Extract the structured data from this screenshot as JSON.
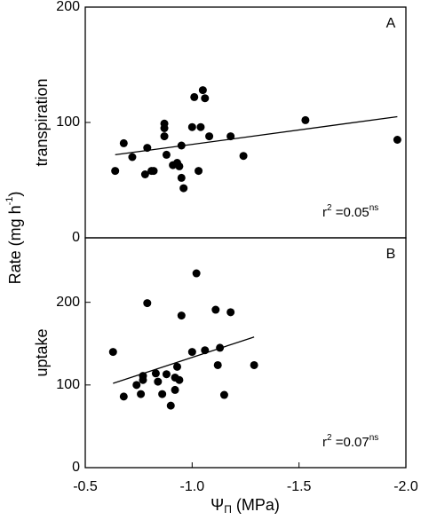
{
  "ylabel": {
    "text": "Rate (mg h",
    "sup": "-1",
    "end": ")"
  },
  "chart_data": [
    {
      "type": "scatter",
      "panel": "A",
      "ylabel": "transpiration",
      "annotation": {
        "r": "r",
        "sup": "2",
        "text": " =0.05",
        "ns": "ns"
      },
      "xlim": [
        -0.5,
        -2.0
      ],
      "ylim": [
        0,
        200
      ],
      "yticks": [
        0,
        100,
        200
      ],
      "color": "#000000",
      "x": [
        -0.64,
        -0.68,
        -0.72,
        -0.78,
        -0.79,
        -0.81,
        -0.82,
        -0.87,
        -0.87,
        -0.87,
        -0.88,
        -0.91,
        -0.93,
        -0.94,
        -0.95,
        -0.96,
        -0.95,
        -1.0,
        -1.01,
        -1.03,
        -1.04,
        -1.05,
        -1.06,
        -1.08,
        -1.18,
        -1.24,
        -1.53,
        -1.96
      ],
      "values": [
        58,
        82,
        70,
        55,
        78,
        58,
        58,
        99,
        95,
        88,
        72,
        63,
        65,
        62,
        52,
        43,
        80,
        96,
        122,
        58,
        96,
        128,
        121,
        88,
        88,
        71,
        102,
        85
      ],
      "fit": {
        "x": [
          -0.64,
          -1.96
        ],
        "y": [
          72,
          105
        ]
      }
    },
    {
      "type": "scatter",
      "panel": "B",
      "ylabel": "uptake",
      "annotation": {
        "r": "r",
        "sup": "2",
        "text": " =0.07",
        "ns": "ns"
      },
      "xlabel": {
        "psi": "Ψ",
        "sub": "Π",
        "text": " (MPa)"
      },
      "xlim": [
        -0.5,
        -2.0
      ],
      "xticks": [
        -0.5,
        {
          "value": -1,
          "label": "-1.0"
        },
        -1.5,
        {
          "value": -2,
          "label": "-2.0"
        }
      ],
      "ylim": [
        0,
        278
      ],
      "yticks": [
        0,
        100,
        200
      ],
      "color": "#000000",
      "x": [
        -0.63,
        -0.68,
        -0.79,
        -0.74,
        -0.77,
        -0.77,
        -0.76,
        -0.83,
        -0.84,
        -0.86,
        -0.88,
        -0.9,
        -0.92,
        -0.92,
        -0.93,
        -0.94,
        -0.95,
        -1.0,
        -1.02,
        -1.06,
        -1.11,
        -1.13,
        -1.12,
        -1.15,
        -1.18,
        -1.29
      ],
      "values": [
        140,
        86,
        199,
        100,
        111,
        106,
        89,
        114,
        104,
        89,
        113,
        75,
        94,
        109,
        122,
        106,
        184,
        140,
        235,
        142,
        191,
        145,
        124,
        88,
        188,
        124
      ],
      "fit": {
        "x": [
          -0.63,
          -1.29
        ],
        "y": [
          102,
          158
        ]
      }
    }
  ]
}
